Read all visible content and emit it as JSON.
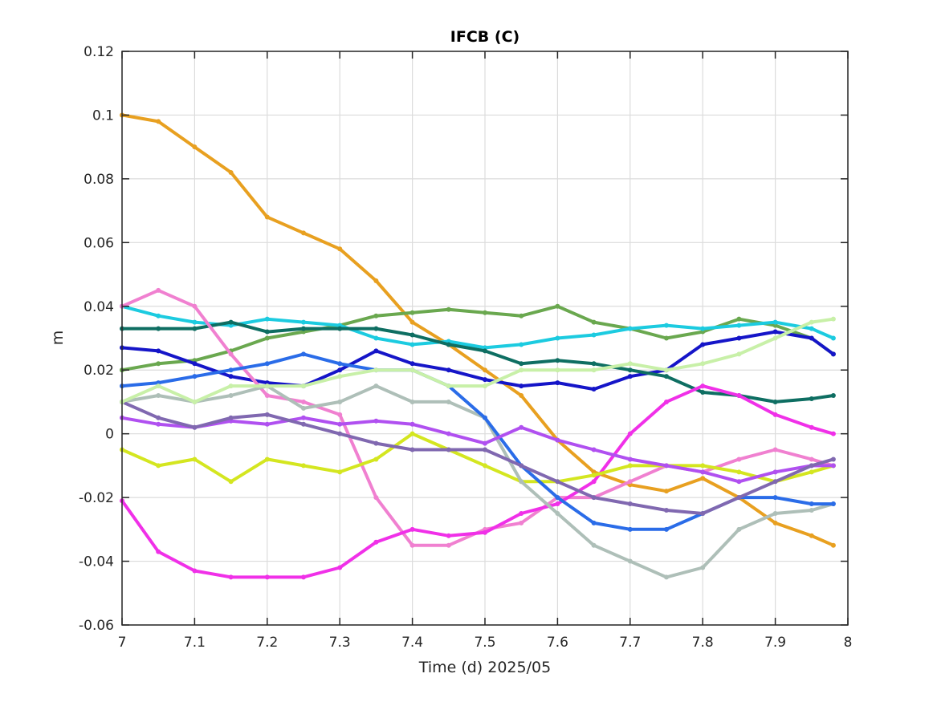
{
  "chart_data": {
    "type": "line",
    "title": "IFCB (C)",
    "xlabel": "Time (d)  2025/05",
    "ylabel": "m",
    "xlim": [
      7,
      8
    ],
    "ylim": [
      -0.06,
      0.12
    ],
    "xticks": [
      "7",
      "7.1",
      "7.2",
      "7.3",
      "7.4",
      "7.5",
      "7.6",
      "7.7",
      "7.8",
      "7.9",
      "8"
    ],
    "yticks": [
      "-0.06",
      "-0.04",
      "-0.02",
      "0",
      "0.02",
      "0.04",
      "0.06",
      "0.08",
      "0.1",
      "0.12"
    ],
    "grid": true,
    "legend": "none",
    "series": [
      {
        "color": "#e8a020",
        "x": [
          7.0,
          7.05,
          7.1,
          7.15,
          7.2,
          7.25,
          7.3,
          7.35,
          7.4,
          7.45,
          7.5,
          7.55,
          7.6,
          7.65,
          7.7,
          7.75,
          7.8,
          7.85,
          7.9,
          7.95,
          7.98
        ],
        "values": [
          0.1,
          0.098,
          0.09,
          0.082,
          0.068,
          0.063,
          0.058,
          0.048,
          0.035,
          0.028,
          0.02,
          0.012,
          -0.002,
          -0.012,
          -0.016,
          -0.018,
          -0.014,
          -0.02,
          -0.028,
          -0.032,
          -0.035
        ]
      },
      {
        "color": "#6aa84f",
        "x": [
          7.0,
          7.05,
          7.1,
          7.15,
          7.2,
          7.25,
          7.3,
          7.35,
          7.4,
          7.45,
          7.5,
          7.55,
          7.6,
          7.65,
          7.7,
          7.75,
          7.8,
          7.85,
          7.9,
          7.95,
          7.98
        ],
        "values": [
          0.02,
          0.022,
          0.023,
          0.026,
          0.03,
          0.032,
          0.034,
          0.037,
          0.038,
          0.039,
          0.038,
          0.037,
          0.04,
          0.035,
          0.033,
          0.03,
          0.032,
          0.036,
          0.034,
          0.03,
          0.025
        ]
      },
      {
        "color": "#1ccbe0",
        "x": [
          7.0,
          7.05,
          7.1,
          7.15,
          7.2,
          7.25,
          7.3,
          7.35,
          7.4,
          7.45,
          7.5,
          7.55,
          7.6,
          7.65,
          7.7,
          7.75,
          7.8,
          7.85,
          7.9,
          7.95,
          7.98
        ],
        "values": [
          0.04,
          0.037,
          0.035,
          0.034,
          0.036,
          0.035,
          0.034,
          0.03,
          0.028,
          0.029,
          0.027,
          0.028,
          0.03,
          0.031,
          0.033,
          0.034,
          0.033,
          0.034,
          0.035,
          0.033,
          0.03
        ]
      },
      {
        "color": "#1515c8",
        "x": [
          7.0,
          7.05,
          7.1,
          7.15,
          7.2,
          7.25,
          7.3,
          7.35,
          7.4,
          7.45,
          7.5,
          7.55,
          7.6,
          7.65,
          7.7,
          7.75,
          7.8,
          7.85,
          7.9,
          7.95,
          7.98
        ],
        "values": [
          0.027,
          0.026,
          0.022,
          0.018,
          0.016,
          0.015,
          0.02,
          0.026,
          0.022,
          0.02,
          0.017,
          0.015,
          0.016,
          0.014,
          0.018,
          0.02,
          0.028,
          0.03,
          0.032,
          0.03,
          0.025
        ]
      },
      {
        "color": "#0e6e62",
        "x": [
          7.0,
          7.05,
          7.1,
          7.15,
          7.2,
          7.25,
          7.3,
          7.35,
          7.4,
          7.45,
          7.5,
          7.55,
          7.6,
          7.65,
          7.7,
          7.75,
          7.8,
          7.85,
          7.9,
          7.95,
          7.98
        ],
        "values": [
          0.033,
          0.033,
          0.033,
          0.035,
          0.032,
          0.033,
          0.033,
          0.033,
          0.031,
          0.028,
          0.026,
          0.022,
          0.023,
          0.022,
          0.02,
          0.018,
          0.013,
          0.012,
          0.01,
          0.011,
          0.012
        ]
      },
      {
        "color": "#f080d0",
        "x": [
          7.0,
          7.05,
          7.1,
          7.15,
          7.2,
          7.25,
          7.3,
          7.35,
          7.4,
          7.45,
          7.5,
          7.55,
          7.6,
          7.65,
          7.7,
          7.75,
          7.8,
          7.85,
          7.9,
          7.95,
          7.98
        ],
        "values": [
          0.04,
          0.045,
          0.04,
          0.025,
          0.012,
          0.01,
          0.006,
          -0.02,
          -0.035,
          -0.035,
          -0.03,
          -0.028,
          -0.02,
          -0.02,
          -0.015,
          -0.01,
          -0.012,
          -0.008,
          -0.005,
          -0.008,
          -0.01
        ]
      },
      {
        "color": "#f030e8",
        "x": [
          7.0,
          7.05,
          7.1,
          7.15,
          7.2,
          7.25,
          7.3,
          7.35,
          7.4,
          7.45,
          7.5,
          7.55,
          7.6,
          7.65,
          7.7,
          7.75,
          7.8,
          7.85,
          7.9,
          7.95,
          7.98
        ],
        "values": [
          -0.021,
          -0.037,
          -0.043,
          -0.045,
          -0.045,
          -0.045,
          -0.042,
          -0.034,
          -0.03,
          -0.032,
          -0.031,
          -0.025,
          -0.022,
          -0.015,
          0.0,
          0.01,
          0.015,
          0.012,
          0.006,
          0.002,
          0.0
        ]
      },
      {
        "color": "#d4e620",
        "x": [
          7.0,
          7.05,
          7.1,
          7.15,
          7.2,
          7.25,
          7.3,
          7.35,
          7.4,
          7.45,
          7.5,
          7.55,
          7.6,
          7.65,
          7.7,
          7.75,
          7.8,
          7.85,
          7.9,
          7.95,
          7.98
        ],
        "values": [
          -0.005,
          -0.01,
          -0.008,
          -0.015,
          -0.008,
          -0.01,
          -0.012,
          -0.008,
          0.0,
          -0.005,
          -0.01,
          -0.015,
          -0.015,
          -0.013,
          -0.01,
          -0.01,
          -0.01,
          -0.012,
          -0.015,
          -0.012,
          -0.01
        ]
      },
      {
        "color": "#aebfb8",
        "x": [
          7.0,
          7.05,
          7.1,
          7.15,
          7.2,
          7.25,
          7.3,
          7.35,
          7.4,
          7.45,
          7.5,
          7.55,
          7.6,
          7.65,
          7.7,
          7.75,
          7.8,
          7.85,
          7.9,
          7.95,
          7.98
        ],
        "values": [
          0.01,
          0.012,
          0.01,
          0.012,
          0.015,
          0.008,
          0.01,
          0.015,
          0.01,
          0.01,
          0.005,
          -0.015,
          -0.025,
          -0.035,
          -0.04,
          -0.045,
          -0.042,
          -0.03,
          -0.025,
          -0.024,
          -0.022
        ]
      },
      {
        "color": "#2a6ce8",
        "x": [
          7.0,
          7.05,
          7.1,
          7.15,
          7.2,
          7.25,
          7.3,
          7.35,
          7.4,
          7.45,
          7.5,
          7.55,
          7.6,
          7.65,
          7.7,
          7.75,
          7.8,
          7.85,
          7.9,
          7.95,
          7.98
        ],
        "values": [
          0.015,
          0.016,
          0.018,
          0.02,
          0.022,
          0.025,
          0.022,
          0.02,
          0.02,
          0.015,
          0.005,
          -0.01,
          -0.02,
          -0.028,
          -0.03,
          -0.03,
          -0.025,
          -0.02,
          -0.02,
          -0.022,
          -0.022
        ]
      },
      {
        "color": "#b050f0",
        "x": [
          7.0,
          7.05,
          7.1,
          7.15,
          7.2,
          7.25,
          7.3,
          7.35,
          7.4,
          7.45,
          7.5,
          7.55,
          7.6,
          7.65,
          7.7,
          7.75,
          7.8,
          7.85,
          7.9,
          7.95,
          7.98
        ],
        "values": [
          0.005,
          0.003,
          0.002,
          0.004,
          0.003,
          0.005,
          0.003,
          0.004,
          0.003,
          0.0,
          -0.003,
          0.002,
          -0.002,
          -0.005,
          -0.008,
          -0.01,
          -0.012,
          -0.015,
          -0.012,
          -0.01,
          -0.01
        ]
      },
      {
        "color": "#8068b0",
        "x": [
          7.0,
          7.05,
          7.1,
          7.15,
          7.2,
          7.25,
          7.3,
          7.35,
          7.4,
          7.45,
          7.5,
          7.55,
          7.6,
          7.65,
          7.7,
          7.75,
          7.8,
          7.85,
          7.9,
          7.95,
          7.98
        ],
        "values": [
          0.01,
          0.005,
          0.002,
          0.005,
          0.006,
          0.003,
          0.0,
          -0.003,
          -0.005,
          -0.005,
          -0.005,
          -0.01,
          -0.015,
          -0.02,
          -0.022,
          -0.024,
          -0.025,
          -0.02,
          -0.015,
          -0.01,
          -0.008
        ]
      },
      {
        "color": "#c8f0a8",
        "x": [
          7.0,
          7.05,
          7.1,
          7.15,
          7.2,
          7.25,
          7.3,
          7.35,
          7.4,
          7.45,
          7.5,
          7.55,
          7.6,
          7.65,
          7.7,
          7.75,
          7.8,
          7.85,
          7.9,
          7.95,
          7.98
        ],
        "values": [
          0.01,
          0.015,
          0.01,
          0.015,
          0.015,
          0.015,
          0.018,
          0.02,
          0.02,
          0.015,
          0.015,
          0.02,
          0.02,
          0.02,
          0.022,
          0.02,
          0.022,
          0.025,
          0.03,
          0.035,
          0.036
        ]
      }
    ]
  }
}
